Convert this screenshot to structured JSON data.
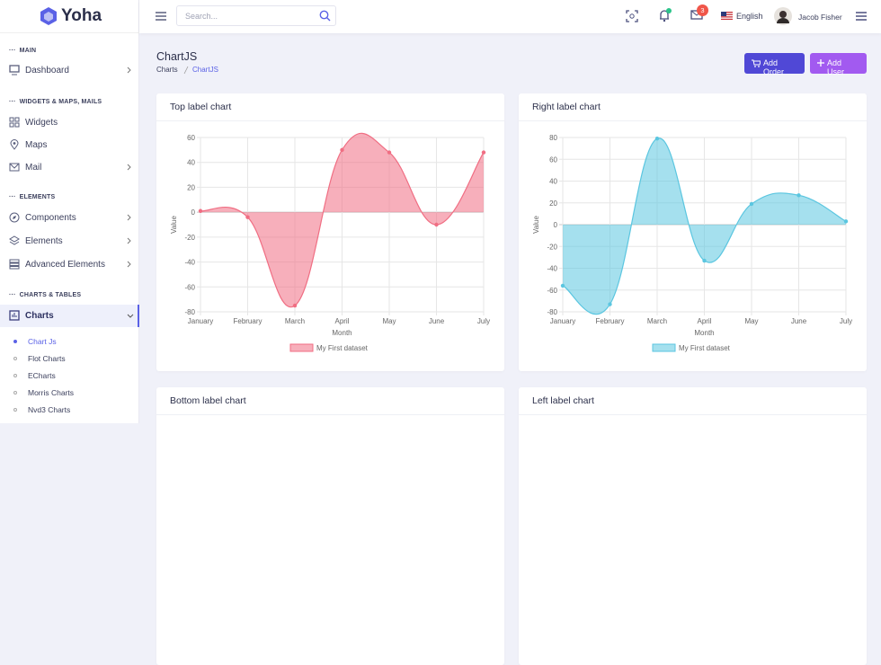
{
  "sidebar": {
    "brand": "Yoha",
    "sections": [
      {
        "heading": "MAIN",
        "items": [
          "Dashboard"
        ]
      },
      {
        "heading": "WIDGETS & MAPS, MAILS",
        "items": [
          "Widgets",
          "Maps",
          "Mail"
        ]
      },
      {
        "heading": "ELEMENTS",
        "items": [
          "Components",
          "Elements",
          "Advanced Elements"
        ]
      },
      {
        "heading": "CHARTS & TABLES",
        "items": [
          "Charts"
        ]
      }
    ],
    "submenu": [
      "Chart Js",
      "Flot Charts",
      "ECharts",
      "Morris Charts",
      "Nvd3 Charts"
    ]
  },
  "header": {
    "search_placeholder": "Search...",
    "mail_badge": "3",
    "language": "English",
    "user": "Jacob Fisher"
  },
  "page": {
    "title": "ChartJS",
    "breadcrumb": [
      "Charts",
      "ChartJS"
    ],
    "buttons": [
      "Add Order",
      "Add User"
    ]
  },
  "charts": [
    {
      "type": "line",
      "title": "Top label chart",
      "categories": [
        "January",
        "February",
        "March",
        "April",
        "May",
        "June",
        "July"
      ],
      "series": [
        {
          "name": "My First dataset",
          "color": "#f06e83",
          "values": [
            1,
            -4,
            -75,
            50,
            48,
            -10,
            48
          ]
        }
      ],
      "ylim": [
        -80,
        60
      ],
      "yticks": [
        -80,
        -60,
        -40,
        -20,
        0,
        20,
        40,
        60
      ],
      "x_label": "Month",
      "y_label": "Value",
      "grid": true,
      "fill": true,
      "legend": "bottom"
    },
    {
      "type": "line",
      "title": "Right label chart",
      "categories": [
        "January",
        "February",
        "March",
        "April",
        "May",
        "June",
        "July"
      ],
      "series": [
        {
          "name": "My First dataset",
          "color": "#5bc6e0",
          "values": [
            -56,
            -73,
            79,
            -33,
            19,
            27,
            3
          ]
        }
      ],
      "ylim": [
        -80,
        80
      ],
      "yticks": [
        -80,
        -60,
        -40,
        -20,
        0,
        20,
        40,
        60,
        80
      ],
      "x_label": "Month",
      "y_label": "Value",
      "grid": true,
      "fill": true,
      "legend": "bottom"
    },
    {
      "title": "Bottom label chart"
    },
    {
      "title": "Left label chart"
    }
  ]
}
